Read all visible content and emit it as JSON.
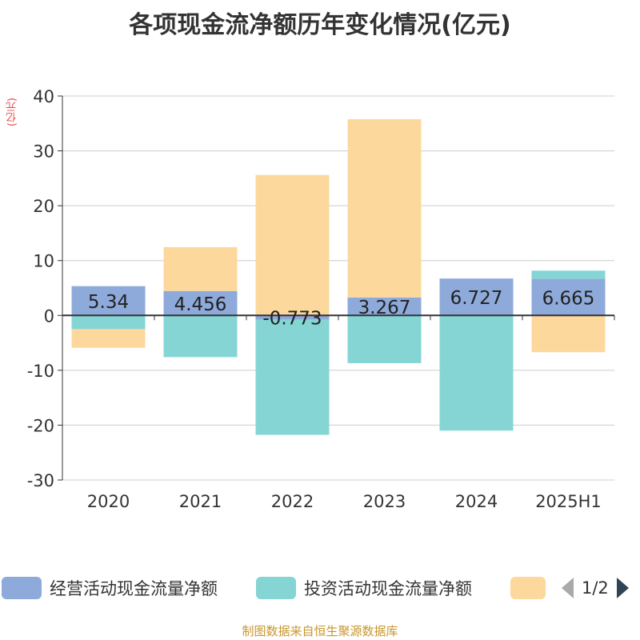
{
  "title": "各项现金流净额历年变化情况(亿元)",
  "unit_label": "(亿元)",
  "source": "制图数据来自恒生聚源数据库",
  "pager": {
    "text": "1/2"
  },
  "legend": [
    {
      "label": "经营活动现金流量净额",
      "color": "#8eaadb"
    },
    {
      "label": "投资活动现金流量净额",
      "color": "#85d5d5"
    },
    {
      "label": "",
      "color": "#fdd89c"
    }
  ],
  "chart_data": {
    "type": "bar",
    "stacked": true,
    "categories": [
      "2020",
      "2021",
      "2022",
      "2023",
      "2024",
      "2025H1"
    ],
    "ylim": [
      -30,
      40
    ],
    "yticks": [
      40,
      30,
      20,
      10,
      0,
      -10,
      -20,
      -30
    ],
    "grid": true,
    "legend_position": "bottom",
    "series": [
      {
        "name": "经营活动现金流量净额",
        "color": "#8eaadb",
        "values": [
          5.34,
          4.456,
          -0.773,
          3.267,
          6.727,
          6.665
        ],
        "labels": [
          "5.34",
          "4.456",
          "-0.773",
          "3.267",
          "6.727",
          "6.665"
        ]
      },
      {
        "name": "投资活动现金流量净额",
        "color": "#85d5d5",
        "values": [
          -2.5,
          -7.6,
          -21.0,
          -8.7,
          -21.0,
          1.5
        ]
      },
      {
        "color": "#fdd89c",
        "values": [
          -3.4,
          8.0,
          25.6,
          32.5,
          0.0,
          -6.7
        ]
      }
    ]
  }
}
